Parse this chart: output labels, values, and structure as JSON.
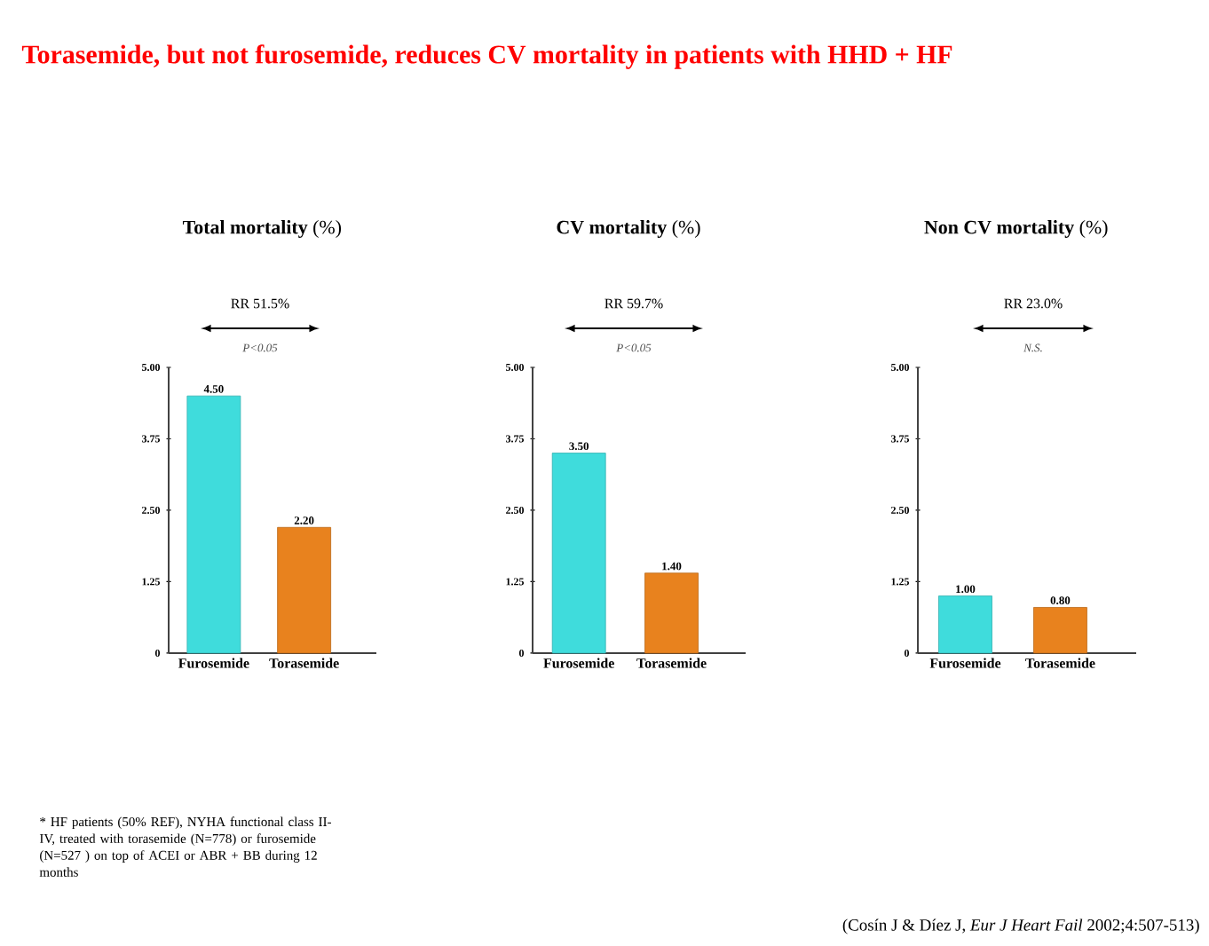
{
  "chart_data": [
    {
      "type": "bar",
      "title": "**Total mortality** (%)",
      "categories": [
        "Furosemide",
        "Torasemide"
      ],
      "values": [
        4.5,
        2.2
      ],
      "value_labels": [
        "4.50",
        "2.20"
      ],
      "colors": [
        "#3fdcdc",
        "#e8821e"
      ],
      "ylim": [
        0,
        5
      ],
      "yticks": [
        0,
        {
          "value": 1.25,
          "label": "1.25"
        },
        {
          "value": 2.5,
          "label": "2.50"
        },
        {
          "value": 3.75,
          "label": "3.75"
        },
        {
          "value": 5,
          "label": "5.00"
        }
      ],
      "annotations": [
        "Torasemide, but not furosemide, reduces CV mortality in patients with HHD + HF",
        "RR 51.5%",
        "P<0.05",
        "* HF patients (50% REF), NYHA functional class II-IV, treated with torasemide (N=778) or furosemide (N=527 ) on top of ACEI or ABR + BB during 12 months"
      ]
    },
    {
      "type": "bar",
      "title": "**CV mortality** (%)",
      "categories": [
        "Furosemide",
        "Torasemide"
      ],
      "values": [
        3.5,
        1.4
      ],
      "value_labels": [
        "3.50",
        "1.40"
      ],
      "colors": [
        "#3fdcdc",
        "#e8821e"
      ],
      "ylim": [
        0,
        5
      ],
      "yticks": [
        0,
        {
          "value": 1.25,
          "label": "1.25"
        },
        {
          "value": 2.5,
          "label": "2.50"
        },
        {
          "value": 3.75,
          "label": "3.75"
        },
        {
          "value": 5,
          "label": "5.00"
        }
      ],
      "annotations": [
        "RR 59.7%",
        "P<0.05"
      ]
    },
    {
      "type": "bar",
      "title": "**Non CV mortality** (%)",
      "categories": [
        "Furosemide",
        "Torasemide"
      ],
      "values": [
        1.0,
        0.8
      ],
      "value_labels": [
        "1.00",
        "0.80"
      ],
      "colors": [
        "#3fdcdc",
        "#e8821e"
      ],
      "ylim": [
        0,
        5
      ],
      "yticks": [
        0,
        {
          "value": 1.25,
          "label": "1.25"
        },
        {
          "value": 2.5,
          "label": "2.50"
        },
        {
          "value": 3.75,
          "label": "3.75"
        },
        {
          "value": 5,
          "label": "5.00"
        }
      ],
      "annotations": [
        "RR 23.0%",
        "N.S.",
        "(Cosín J & Díez J, *Eur J Heart Fail* 2002;4:507-513)"
      ]
    }
  ]
}
